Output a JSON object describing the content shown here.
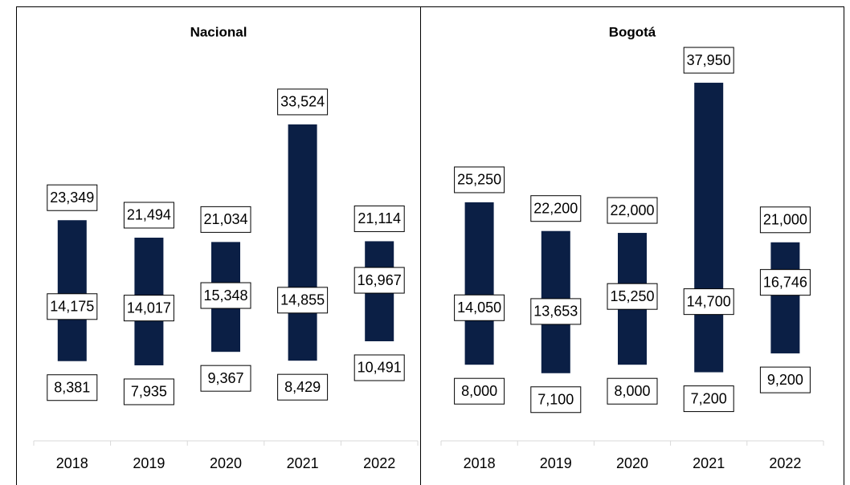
{
  "chart_data": [
    {
      "type": "range",
      "title": "Nacional",
      "categories": [
        "2018",
        "2019",
        "2020",
        "2021",
        "2022"
      ],
      "low": {
        "values": [
          8381,
          7935,
          9367,
          8429,
          10491
        ],
        "value_labels": [
          "8,381",
          "7,935",
          "9,367",
          "8,429",
          "10,491"
        ]
      },
      "mid": {
        "values": [
          14175,
          14017,
          15348,
          14855,
          16967
        ],
        "value_labels": [
          "14,175",
          "14,017",
          "15,348",
          "14,855",
          "16,967"
        ]
      },
      "high": {
        "values": [
          23349,
          21494,
          21034,
          33524,
          21114
        ],
        "value_labels": [
          "23,349",
          "21,494",
          "21,034",
          "33,524",
          "21,114"
        ]
      },
      "color": "#0b1f45",
      "ylim": [
        0,
        40000
      ]
    },
    {
      "type": "range",
      "title": "Bogotá",
      "categories": [
        "2018",
        "2019",
        "2020",
        "2021",
        "2022"
      ],
      "low": {
        "values": [
          8000,
          7100,
          8000,
          7200,
          9200
        ],
        "value_labels": [
          "8,000",
          "7,100",
          "8,000",
          "7,200",
          "9,200"
        ]
      },
      "mid": {
        "values": [
          14050,
          13653,
          15250,
          14700,
          16746
        ],
        "value_labels": [
          "14,050",
          "13,653",
          "15,250",
          "14,700",
          "16,746"
        ]
      },
      "high": {
        "values": [
          25250,
          22200,
          22000,
          37950,
          21000
        ],
        "value_labels": [
          "25,250",
          "22,200",
          "22,000",
          "37,950",
          "21,000"
        ]
      },
      "color": "#0b1f45",
      "ylim": [
        0,
        40000
      ]
    }
  ]
}
